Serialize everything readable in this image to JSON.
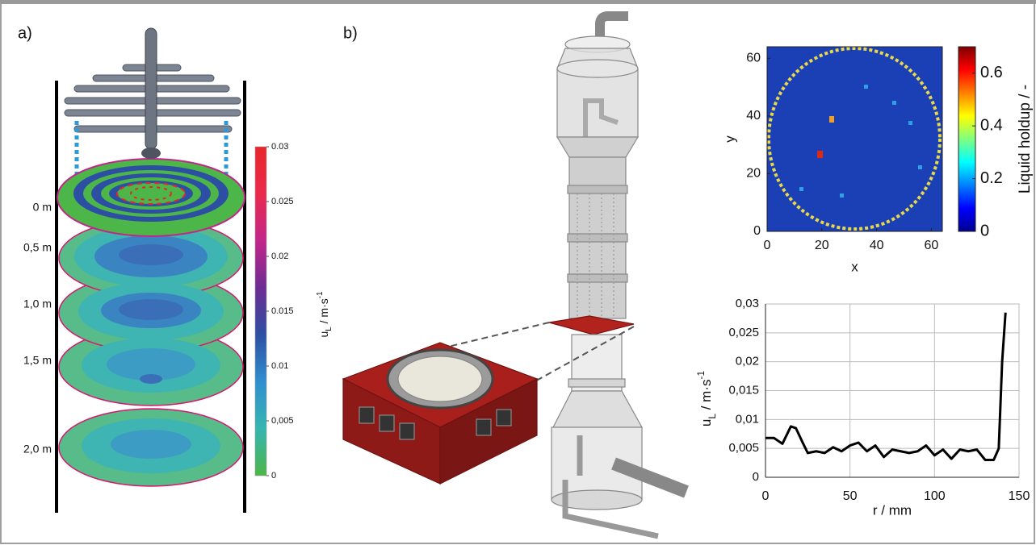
{
  "panel_labels": [
    "a)",
    "b)"
  ],
  "heights": [
    "0 m",
    "0,5 m",
    "1,0 m",
    "1,5 m",
    "2,0 m"
  ],
  "chart_data": [
    {
      "type": "colorbar",
      "label": [
        "u",
        "L",
        " / m·s",
        "-1"
      ],
      "clim": [
        0,
        0.03
      ],
      "ticks": [
        0,
        {
          "value": 0.005,
          "label": "0,005"
        },
        {
          "value": 0.01,
          "label": "0.01"
        },
        {
          "value": 0.015,
          "label": "0.015"
        },
        {
          "value": 0.02,
          "label": "0.02"
        },
        {
          "value": 0.025,
          "label": "0.025"
        },
        {
          "value": 0.03,
          "label": "0.03"
        }
      ],
      "colors": [
        "#4cb648",
        "#35b6b0",
        "#2f8fd0",
        "#2d4fa3",
        "#6c2c93",
        "#c3268a",
        "#ea2a4c",
        "#e8262a"
      ]
    },
    {
      "type": "heatmap",
      "xlabel": "x",
      "ylabel": "y",
      "xlim": [
        0,
        64
      ],
      "ylim": [
        0,
        64
      ],
      "xticks": [
        0,
        20,
        40,
        60
      ],
      "yticks": [
        0,
        20,
        40,
        60
      ],
      "colorbar_label": "Liquid holdup / -",
      "clim": [
        0,
        0.7
      ],
      "cticks": [
        0,
        0.2,
        0.4,
        0.6
      ],
      "colors": [
        "#00008f",
        "#0000ff",
        "#0080ff",
        "#00ffff",
        "#80ff80",
        "#ffff00",
        "#ff8000",
        "#ff0000",
        "#800000"
      ]
    },
    {
      "type": "line",
      "xlabel": "r / mm",
      "ylabel": [
        "u",
        "L",
        " / m·s",
        "-1"
      ],
      "x": [
        0,
        5,
        10,
        15,
        18,
        22,
        25,
        30,
        35,
        40,
        45,
        50,
        55,
        60,
        65,
        70,
        75,
        80,
        85,
        90,
        95,
        100,
        105,
        110,
        115,
        120,
        125,
        130,
        135,
        138,
        140,
        142
      ],
      "values": [
        0.0068,
        0.0068,
        0.0058,
        0.0088,
        0.0085,
        0.006,
        0.0042,
        0.0045,
        0.0042,
        0.0052,
        0.0045,
        0.0055,
        0.006,
        0.0045,
        0.0055,
        0.0035,
        0.0048,
        0.0045,
        0.0042,
        0.0045,
        0.0055,
        0.0038,
        0.0048,
        0.0032,
        0.0048,
        0.0045,
        0.0048,
        0.003,
        0.003,
        0.005,
        0.02,
        0.0285
      ],
      "color": "#000000",
      "xlim": [
        0,
        150
      ],
      "xticks": [
        0,
        50,
        100,
        150
      ],
      "ylim": [
        0,
        0.03
      ],
      "yticks": [
        0,
        {
          "value": 0.005,
          "label": "0,005"
        },
        {
          "value": 0.01,
          "label": "0,01"
        },
        {
          "value": 0.015,
          "label": "0,015"
        },
        {
          "value": 0.02,
          "label": "0,02"
        },
        {
          "value": 0.025,
          "label": "0,025"
        },
        {
          "value": 0.03,
          "label": "0,03"
        }
      ],
      "grid": true
    }
  ]
}
